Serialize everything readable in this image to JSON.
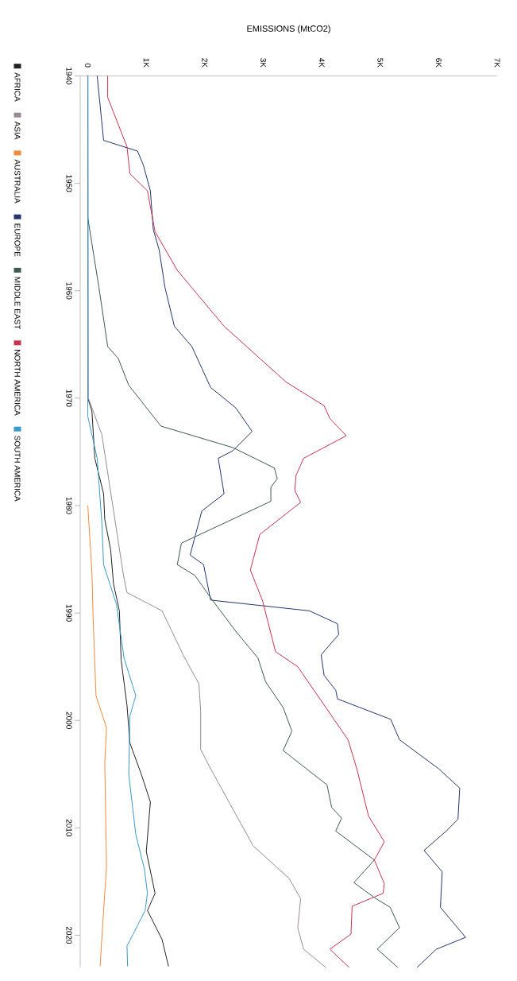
{
  "chart_data": {
    "type": "line",
    "xlabel": "EMISSIONS (MtCO2)",
    "ylim": [
      2023,
      1940
    ],
    "xlim": [
      -130,
      7000
    ],
    "yticks": [
      1940,
      1950,
      1960,
      1970,
      1980,
      1990,
      2000,
      2010,
      2020
    ],
    "xticks": [
      0,
      {
        "value": 1000,
        "label": "1K"
      },
      {
        "value": 2000,
        "label": "2K"
      },
      {
        "value": 3000,
        "label": "3K"
      },
      {
        "value": 4000,
        "label": "4K"
      },
      {
        "value": 5000,
        "label": "5K"
      },
      {
        "value": 6000,
        "label": "6K"
      },
      {
        "value": 7000,
        "label": "7K"
      }
    ],
    "legend": "left",
    "series": [
      {
        "name": "AFRICA",
        "color": "#222222",
        "values": [
          1940,
          1970,
          1971.2,
          1975.6,
          1978.9,
          1981.3,
          1984.1,
          1987.3,
          1989.8,
          1994.4,
          1998.6,
          2002.1,
          2005.1,
          2007.6,
          2012.2,
          2016.1,
          2017.7,
          2020.4,
          2022.9
        ],
        "x": [
          0,
          0,
          70,
          120,
          270,
          290,
          390,
          440,
          540,
          570,
          670,
          720,
          920,
          1070,
          1000,
          1150,
          1020,
          1270,
          1380
        ]
      },
      {
        "name": "ASIA",
        "color": "#9a8a96",
        "values": [
          1940,
          1970,
          1973.4,
          1986.5,
          1988.1,
          1989.8,
          1993.9,
          1996.6,
          1999.1,
          2002.7,
          2004.5,
          2011.7,
          2014.7,
          2016.6,
          2019.3,
          2021.3,
          2023
        ],
        "x": [
          0,
          10,
          240,
          610,
          670,
          1270,
          1630,
          1900,
          1930,
          1930,
          2100,
          2830,
          3440,
          3640,
          3590,
          3690,
          4070
        ]
      },
      {
        "name": "AUSTRALIA",
        "color": "#f28a3c",
        "values": [
          1980,
          1986.2,
          1990.3,
          1997.7,
          2000.7,
          2004,
          2013.6,
          2017.7,
          2022.9
        ],
        "x": [
          0,
          70,
          90,
          140,
          320,
          290,
          320,
          270,
          210
        ]
      },
      {
        "name": "EUROPE",
        "color": "#24356e",
        "values": [
          1940,
          1946,
          1947,
          1948.3,
          1950.7,
          1954.3,
          1956.2,
          1959.7,
          1963.3,
          1965.2,
          1969,
          1970.9,
          1973.1,
          1974.9,
          1975.6,
          1978.9,
          1980.5,
          1984.6,
          1985.5,
          1988.8,
          1989.8,
          1991,
          1992,
          1993.9,
          1995.8,
          1997.2,
          1998,
          1999.9,
          2001.8,
          2004.5,
          2006.3,
          2009.2,
          2010.3,
          2012.1,
          2014.1,
          2017.4,
          2020.2,
          2021.3,
          2023
        ],
        "x": [
          160,
          270,
          850,
          950,
          1070,
          1120,
          1220,
          1320,
          1480,
          1780,
          2100,
          2530,
          2810,
          2480,
          2230,
          2330,
          1950,
          1750,
          1980,
          2100,
          3790,
          4270,
          4290,
          3990,
          4040,
          4240,
          4270,
          5180,
          5330,
          6000,
          6360,
          6330,
          6130,
          5750,
          6060,
          6030,
          6460,
          5960,
          5630
        ]
      },
      {
        "name": "MIDDLE EAST",
        "color": "#3c5a50",
        "values": [
          1940,
          1953.2,
          1955.6,
          1959.7,
          1965.2,
          1966.3,
          1968.8,
          1972.6,
          1974.6,
          1976.5,
          1977.5,
          1978.3,
          1979.6,
          1983.5,
          1985.5,
          1986.5,
          1988.8,
          1991.7,
          1994.2,
          1996.4,
          1998.8,
          2001,
          2002.8,
          2006,
          2008.1,
          2009.1,
          2010.3,
          2013,
          2015.1,
          2016.5,
          2017.4,
          2019.3,
          2021.3,
          2023
        ],
        "x": [
          0,
          0,
          70,
          190,
          340,
          520,
          700,
          1250,
          2480,
          3190,
          3240,
          3130,
          3130,
          1600,
          1530,
          1830,
          2130,
          2530,
          2910,
          3040,
          3340,
          3490,
          3340,
          4090,
          4170,
          4340,
          4240,
          4900,
          4550,
          4900,
          5170,
          5330,
          4950,
          5300
        ]
      },
      {
        "name": "NORTH AMERICA",
        "color": "#c8334e",
        "values": [
          1940,
          1942,
          1946.6,
          1949.1,
          1950.7,
          1954.5,
          1958.1,
          1963.3,
          1968.5,
          1970.7,
          1971.9,
          1973.5,
          1975.6,
          1977.2,
          1978.6,
          1979.7,
          1982.7,
          1986,
          1988.9,
          1993.6,
          1995,
          2001.8,
          2004.5,
          2008.9,
          2011.3,
          2013,
          2015.2,
          2016.1,
          2017.3,
          2019.9,
          2021.3,
          2023
        ],
        "x": [
          340,
          340,
          670,
          720,
          1020,
          1150,
          1530,
          2330,
          3390,
          4040,
          4140,
          4420,
          3690,
          3560,
          3540,
          3640,
          2940,
          2780,
          2990,
          3210,
          3590,
          4450,
          4600,
          4800,
          5070,
          4900,
          5070,
          5050,
          4520,
          4500,
          4140,
          4470
        ]
      },
      {
        "name": "SOUTH AMERICA",
        "color": "#3a9ac8",
        "values": [
          1940,
          1971.7,
          1975.6,
          1981.6,
          1985.5,
          1989.2,
          1994.2,
          1997.7,
          1999.6,
          2005,
          2010.6,
          2013.9,
          2016.1,
          2017.7,
          2021,
          2022.9
        ],
        "x": [
          0,
          0,
          160,
          240,
          270,
          490,
          620,
          820,
          720,
          700,
          820,
          970,
          1020,
          980,
          670,
          680
        ]
      }
    ]
  }
}
